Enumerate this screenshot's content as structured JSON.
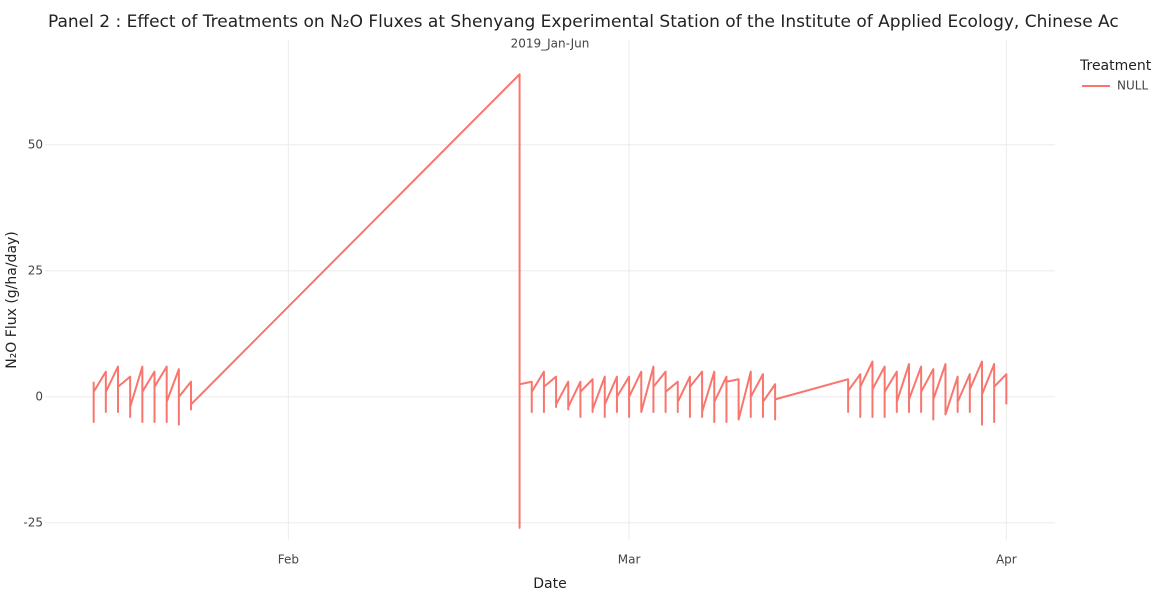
{
  "chart_data": {
    "type": "line",
    "title": "Panel 2 : Effect of Treatments on N₂O Fluxes at Shenyang Experimental Station of the Institute of Applied Ecology, Chinese Ac",
    "subtitle": "2019_Jan-Jun",
    "x_label": "Date",
    "y_label": "N₂O Flux (g/ha/day)",
    "legend_title": "Treatment",
    "legend_position": "top-right",
    "grid": true,
    "x": [
      "2019-01-16",
      "2019-01-16",
      "2019-01-16",
      "2019-01-17",
      "2019-01-17",
      "2019-01-17",
      "2019-01-18",
      "2019-01-18",
      "2019-01-18",
      "2019-01-19",
      "2019-01-19",
      "2019-01-19",
      "2019-01-20",
      "2019-01-20",
      "2019-01-20",
      "2019-01-21",
      "2019-01-21",
      "2019-01-21",
      "2019-01-22",
      "2019-01-22",
      "2019-01-22",
      "2019-01-23",
      "2019-01-23",
      "2019-01-23",
      "2019-01-24",
      "2019-01-24",
      "2019-01-24",
      "2019-02-20",
      "2019-02-20",
      "2019-02-20",
      "2019-02-21",
      "2019-02-21",
      "2019-02-21",
      "2019-02-22",
      "2019-02-22",
      "2019-02-22",
      "2019-02-23",
      "2019-02-23",
      "2019-02-23",
      "2019-02-24",
      "2019-02-24",
      "2019-02-24",
      "2019-02-25",
      "2019-02-25",
      "2019-02-25",
      "2019-02-26",
      "2019-02-26",
      "2019-02-26",
      "2019-02-27",
      "2019-02-27",
      "2019-02-27",
      "2019-02-28",
      "2019-02-28",
      "2019-02-28",
      "2019-03-01",
      "2019-03-01",
      "2019-03-01",
      "2019-03-02",
      "2019-03-02",
      "2019-03-02",
      "2019-03-03",
      "2019-03-03",
      "2019-03-03",
      "2019-03-04",
      "2019-03-04",
      "2019-03-04",
      "2019-03-05",
      "2019-03-05",
      "2019-03-05",
      "2019-03-06",
      "2019-03-06",
      "2019-03-06",
      "2019-03-07",
      "2019-03-07",
      "2019-03-07",
      "2019-03-08",
      "2019-03-08",
      "2019-03-08",
      "2019-03-09",
      "2019-03-09",
      "2019-03-09",
      "2019-03-10",
      "2019-03-10",
      "2019-03-10",
      "2019-03-11",
      "2019-03-11",
      "2019-03-11",
      "2019-03-12",
      "2019-03-12",
      "2019-03-12",
      "2019-03-13",
      "2019-03-13",
      "2019-03-13",
      "2019-03-19",
      "2019-03-19",
      "2019-03-19",
      "2019-03-20",
      "2019-03-20",
      "2019-03-20",
      "2019-03-21",
      "2019-03-21",
      "2019-03-21",
      "2019-03-22",
      "2019-03-22",
      "2019-03-22",
      "2019-03-23",
      "2019-03-23",
      "2019-03-23",
      "2019-03-24",
      "2019-03-24",
      "2019-03-24",
      "2019-03-25",
      "2019-03-25",
      "2019-03-25",
      "2019-03-26",
      "2019-03-26",
      "2019-03-26",
      "2019-03-27",
      "2019-03-27",
      "2019-03-27",
      "2019-03-28",
      "2019-03-28",
      "2019-03-28",
      "2019-03-29",
      "2019-03-29",
      "2019-03-29",
      "2019-03-30",
      "2019-03-30",
      "2019-03-30",
      "2019-03-31",
      "2019-03-31",
      "2019-03-31",
      "2019-04-01",
      "2019-04-01",
      "2019-04-01"
    ],
    "series": [
      {
        "name": "NULL",
        "color": "#F8766D",
        "values": [
          3,
          -5,
          1,
          5,
          -3,
          1,
          6,
          -3,
          2,
          4,
          -4,
          -2,
          6,
          -5,
          1,
          5,
          -5,
          2,
          6,
          -5,
          -1,
          5.5,
          -5.5,
          0,
          3,
          -2.5,
          -1.5,
          64,
          -26,
          2.5,
          3,
          -3,
          1,
          5,
          -3,
          2,
          4,
          -2,
          -1.5,
          3,
          -2.5,
          -2,
          3,
          -4,
          1,
          3.5,
          -3,
          -2.5,
          4,
          -4,
          -1.5,
          4,
          -3,
          0,
          4,
          -4,
          0,
          5,
          -3,
          -3,
          6,
          -3,
          2,
          5,
          -3,
          1,
          3,
          -3,
          -1,
          4,
          -4,
          2,
          5,
          -4,
          -3,
          5,
          -5,
          -1,
          4,
          -5,
          3,
          3.5,
          -4.5,
          -4.5,
          5,
          -4,
          0,
          4.5,
          -4,
          -1,
          2.5,
          -4.5,
          -0.5,
          3.5,
          -3,
          1.2,
          4.5,
          -4,
          2,
          7,
          -4,
          1.5,
          6,
          -4,
          1,
          5,
          -3,
          -1,
          6.5,
          -3,
          -0.5,
          6,
          -3,
          1,
          5.5,
          -4.5,
          -0.5,
          6.5,
          -3.5,
          -3.5,
          4,
          -3,
          -1,
          4.5,
          -3,
          1.5,
          7,
          -5.5,
          0.5,
          6.5,
          -5,
          2,
          4.5,
          -1.5,
          -1.5
        ]
      }
    ],
    "xlim": [
      "2019-01-12",
      "2019-04-05"
    ],
    "xticks": [
      {
        "value": "2019-02-01",
        "label": "Feb"
      },
      {
        "value": "2019-03-01",
        "label": "Mar"
      },
      {
        "value": "2019-04-01",
        "label": "Apr"
      }
    ],
    "ylim": [
      -28.4,
      70.8
    ],
    "yticks": [
      -25,
      0,
      25,
      50
    ]
  }
}
